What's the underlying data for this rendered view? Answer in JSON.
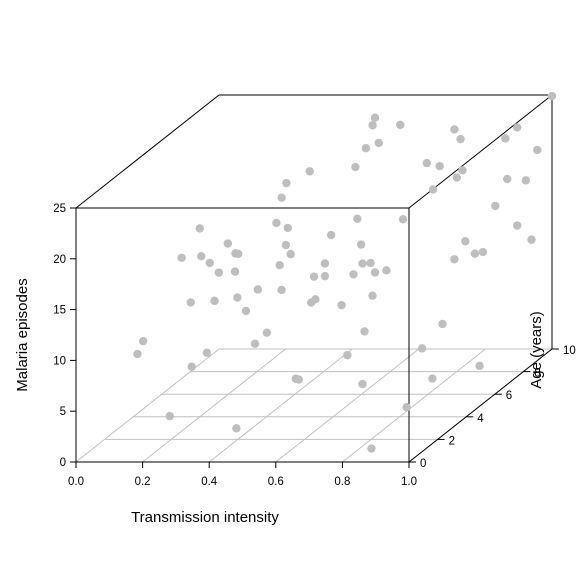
{
  "chart_data": {
    "type": "scatter",
    "subtype": "3d-scatter-perspective-box",
    "title": "",
    "xlabel": "Transmission intensity",
    "ylabel": "Age (years)",
    "zlabel": "Malaria episodes",
    "xlim": [
      0,
      1
    ],
    "ylim": [
      0,
      10
    ],
    "zlim": [
      0,
      25
    ],
    "x_ticks": [
      "0.0",
      "0.2",
      "0.4",
      "0.6",
      "0.8",
      "1.0"
    ],
    "y_ticks": [
      "0",
      "2",
      "4",
      "6",
      "8",
      "10"
    ],
    "z_ticks": [
      "0",
      "5",
      "10",
      "15",
      "20",
      "25"
    ],
    "grid": "floor grid lines at each x and y tick",
    "point_color": "#bebebe",
    "box_color": "#000000",
    "grid_color": "#c0c0c0",
    "points": [
      {
        "x": 0.84,
        "y": 1.1,
        "z": 0.1
      },
      {
        "x": 0.4,
        "y": 1.9,
        "z": 1.2
      },
      {
        "x": 0.2,
        "y": 1.9,
        "z": 2.4
      },
      {
        "x": 0.92,
        "y": 1.7,
        "z": 3.5
      },
      {
        "x": 0.68,
        "y": 4.2,
        "z": 3.0
      },
      {
        "x": 0.51,
        "y": 3.7,
        "z": 4.0
      },
      {
        "x": 0.24,
        "y": 2.5,
        "z": 6.6
      },
      {
        "x": 0.51,
        "y": 3.5,
        "z": 4.3
      },
      {
        "x": 0.06,
        "y": 2.9,
        "z": 7.4
      },
      {
        "x": 0.09,
        "y": 2.6,
        "z": 9.0
      },
      {
        "x": 0.26,
        "y": 3.1,
        "z": 7.3
      },
      {
        "x": 0.37,
        "y": 3.9,
        "z": 7.3
      },
      {
        "x": 0.95,
        "y": 2.8,
        "z": 5.1
      },
      {
        "x": 0.54,
        "y": 6.4,
        "z": 3.4
      },
      {
        "x": 0.92,
        "y": 6.8,
        "z": 1.9
      },
      {
        "x": 0.7,
        "y": 7.9,
        "z": 2.4
      },
      {
        "x": 0.54,
        "y": 7.6,
        "z": 4.4
      },
      {
        "x": 0.8,
        "y": 7.0,
        "z": 5.8
      },
      {
        "x": 0.41,
        "y": 3.8,
        "z": 8.5
      },
      {
        "x": 0.33,
        "y": 4.2,
        "z": 10.2
      },
      {
        "x": 0.44,
        "y": 6.2,
        "z": 8.8
      },
      {
        "x": 0.24,
        "y": 4.1,
        "z": 11.3
      },
      {
        "x": 0.19,
        "y": 3.6,
        "z": 11.7
      },
      {
        "x": 0.3,
        "y": 4.3,
        "z": 11.4
      },
      {
        "x": 0.4,
        "y": 3.4,
        "z": 13.2
      },
      {
        "x": 0.45,
        "y": 3.9,
        "z": 12.6
      },
      {
        "x": 0.31,
        "y": 3.9,
        "z": 14.4
      },
      {
        "x": 0.2,
        "y": 4.1,
        "z": 15.7
      },
      {
        "x": 0.47,
        "y": 5.7,
        "z": 11.9
      },
      {
        "x": 0.52,
        "y": 5.3,
        "z": 12.4
      },
      {
        "x": 0.58,
        "y": 5.9,
        "z": 11.9
      },
      {
        "x": 0.61,
        "y": 6.7,
        "z": 11.2
      },
      {
        "x": 0.64,
        "y": 6.8,
        "z": 11.3
      },
      {
        "x": 0.62,
        "y": 5.6,
        "z": 13.3
      },
      {
        "x": 0.59,
        "y": 6.2,
        "z": 14.5
      },
      {
        "x": 0.71,
        "y": 4.2,
        "z": 11.7
      },
      {
        "x": 0.63,
        "y": 3.9,
        "z": 11.1
      },
      {
        "x": 0.56,
        "y": 3.7,
        "z": 11.9
      },
      {
        "x": 0.35,
        "y": 3.0,
        "z": 17.2
      },
      {
        "x": 0.43,
        "y": 4.8,
        "z": 17.7
      },
      {
        "x": 0.4,
        "y": 4.7,
        "z": 18.3
      },
      {
        "x": 0.43,
        "y": 5.0,
        "z": 14.9
      },
      {
        "x": 0.42,
        "y": 4.9,
        "z": 15.9
      },
      {
        "x": 0.56,
        "y": 4.8,
        "z": 17.0
      },
      {
        "x": 0.6,
        "y": 5.7,
        "z": 17.6
      },
      {
        "x": 0.72,
        "y": 6.1,
        "z": 17.1
      },
      {
        "x": 0.8,
        "y": 8.0,
        "z": 19.1
      },
      {
        "x": 0.95,
        "y": 7.2,
        "z": 17.2
      },
      {
        "x": 0.89,
        "y": 6.5,
        "z": 14.5
      },
      {
        "x": 0.93,
        "y": 6.8,
        "z": 13.1
      },
      {
        "x": 0.99,
        "y": 7.8,
        "z": 14.6
      },
      {
        "x": 0.81,
        "y": 7.6,
        "z": 11.5
      },
      {
        "x": 0.85,
        "y": 8.1,
        "z": 11.5
      },
      {
        "x": 0.99,
        "y": 8.8,
        "z": 12.1
      },
      {
        "x": 0.46,
        "y": 4.0,
        "z": 23.0
      },
      {
        "x": 0.42,
        "y": 4.6,
        "z": 20.9
      },
      {
        "x": 0.47,
        "y": 5.4,
        "z": 22.6
      },
      {
        "x": 0.56,
        "y": 6.5,
        "z": 21.8
      },
      {
        "x": 0.74,
        "y": 8.2,
        "z": 20.0
      },
      {
        "x": 0.72,
        "y": 8.2,
        "z": 17.7
      },
      {
        "x": 0.74,
        "y": 7.3,
        "z": 21.3
      },
      {
        "x": 0.82,
        "y": 7.8,
        "z": 23.1
      },
      {
        "x": 0.93,
        "y": 8.5,
        "z": 18.4
      },
      {
        "x": 0.96,
        "y": 9.1,
        "z": 17.6
      },
      {
        "x": 1.0,
        "y": 10.0,
        "z": 24.9
      },
      {
        "x": 0.96,
        "y": 9.9,
        "z": 19.7
      },
      {
        "x": 0.89,
        "y": 9.3,
        "z": 21.5
      },
      {
        "x": 0.93,
        "y": 9.2,
        "z": 22.7
      },
      {
        "x": 0.6,
        "y": 8.7,
        "z": 23.5
      },
      {
        "x": 0.52,
        "y": 8.8,
        "z": 24.1
      },
      {
        "x": 0.53,
        "y": 8.4,
        "z": 23.8
      },
      {
        "x": 0.6,
        "y": 7.2,
        "z": 23.4
      },
      {
        "x": 0.57,
        "y": 7.0,
        "z": 23.1
      },
      {
        "x": 0.78,
        "y": 8.3,
        "z": 23.5
      },
      {
        "x": 0.26,
        "y": 2.6,
        "z": 20.1
      },
      {
        "x": 0.24,
        "y": 1.8,
        "z": 18.1
      },
      {
        "x": 0.34,
        "y": 2.7,
        "z": 18.5
      },
      {
        "x": 0.29,
        "y": 2.6,
        "z": 16.7
      },
      {
        "x": 0.3,
        "y": 3.0,
        "z": 15.3
      },
      {
        "x": 0.38,
        "y": 2.5,
        "z": 17.7
      },
      {
        "x": 0.47,
        "y": 3.3,
        "z": 15.7
      },
      {
        "x": 0.58,
        "y": 3.9,
        "z": 15.2
      },
      {
        "x": 0.7,
        "y": 4.3,
        "z": 14.8
      },
      {
        "x": 0.89,
        "y": 6.3,
        "z": 21.7
      }
    ]
  }
}
